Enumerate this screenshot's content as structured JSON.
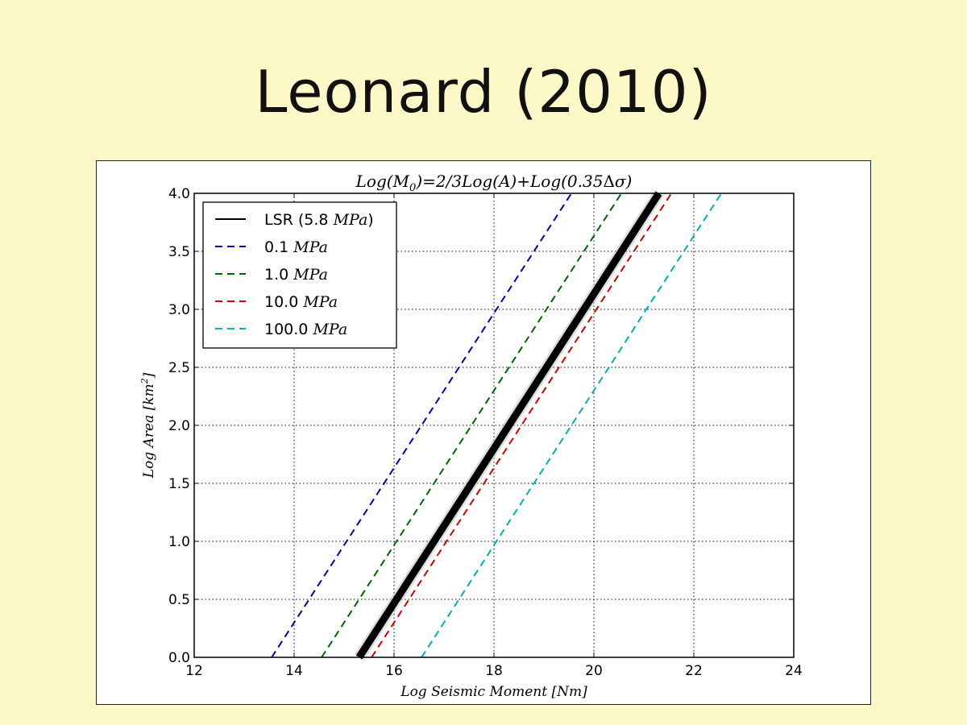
{
  "slide": {
    "title": "Leonard (2010)"
  },
  "chart_data": {
    "type": "line",
    "title": "Log(M₀) = 2/3Log(A) + Log(0.35Δσ)",
    "xlabel": "Log Seismic Moment [Nm]",
    "ylabel": "Log Area [km²]",
    "xlim": [
      12,
      24
    ],
    "ylim": [
      0.0,
      4.0
    ],
    "xticks": [
      12,
      14,
      16,
      18,
      20,
      22,
      24
    ],
    "yticks": [
      "0.0",
      "0.5",
      "1.0",
      "1.5",
      "2.0",
      "2.5",
      "3.0",
      "3.5",
      "4.0"
    ],
    "grid": true,
    "legend_position": "top-left",
    "series": [
      {
        "name": "LSR (5.8 MPa)",
        "label_text": "LSR (5.8 ",
        "label_unit": "MPa",
        "label_close": ")",
        "color": "#000000",
        "style": "solid",
        "x": [
          15.3,
          21.3
        ],
        "y": [
          0.0,
          4.0
        ]
      },
      {
        "name": "0.1 MPa",
        "label_text": "0.1 ",
        "label_unit": "MPa",
        "label_close": "",
        "color": "#0000bb",
        "style": "dashed",
        "x": [
          13.55,
          19.55
        ],
        "y": [
          0.0,
          4.0
        ]
      },
      {
        "name": "1.0 MPa",
        "label_text": "1.0 ",
        "label_unit": "MPa",
        "label_close": "",
        "color": "#006400",
        "style": "dashed",
        "x": [
          14.55,
          20.55
        ],
        "y": [
          0.0,
          4.0
        ]
      },
      {
        "name": "10.0 MPa",
        "label_text": "10.0 ",
        "label_unit": "MPa",
        "label_close": "",
        "color": "#d40000",
        "style": "dashed",
        "x": [
          15.55,
          21.55
        ],
        "y": [
          0.0,
          4.0
        ]
      },
      {
        "name": "100.0 MPa",
        "label_text": "100.0 ",
        "label_unit": "MPa",
        "label_close": "",
        "color": "#00b0b0",
        "style": "dashed",
        "x": [
          16.55,
          22.55
        ],
        "y": [
          0.0,
          4.0
        ]
      }
    ]
  }
}
